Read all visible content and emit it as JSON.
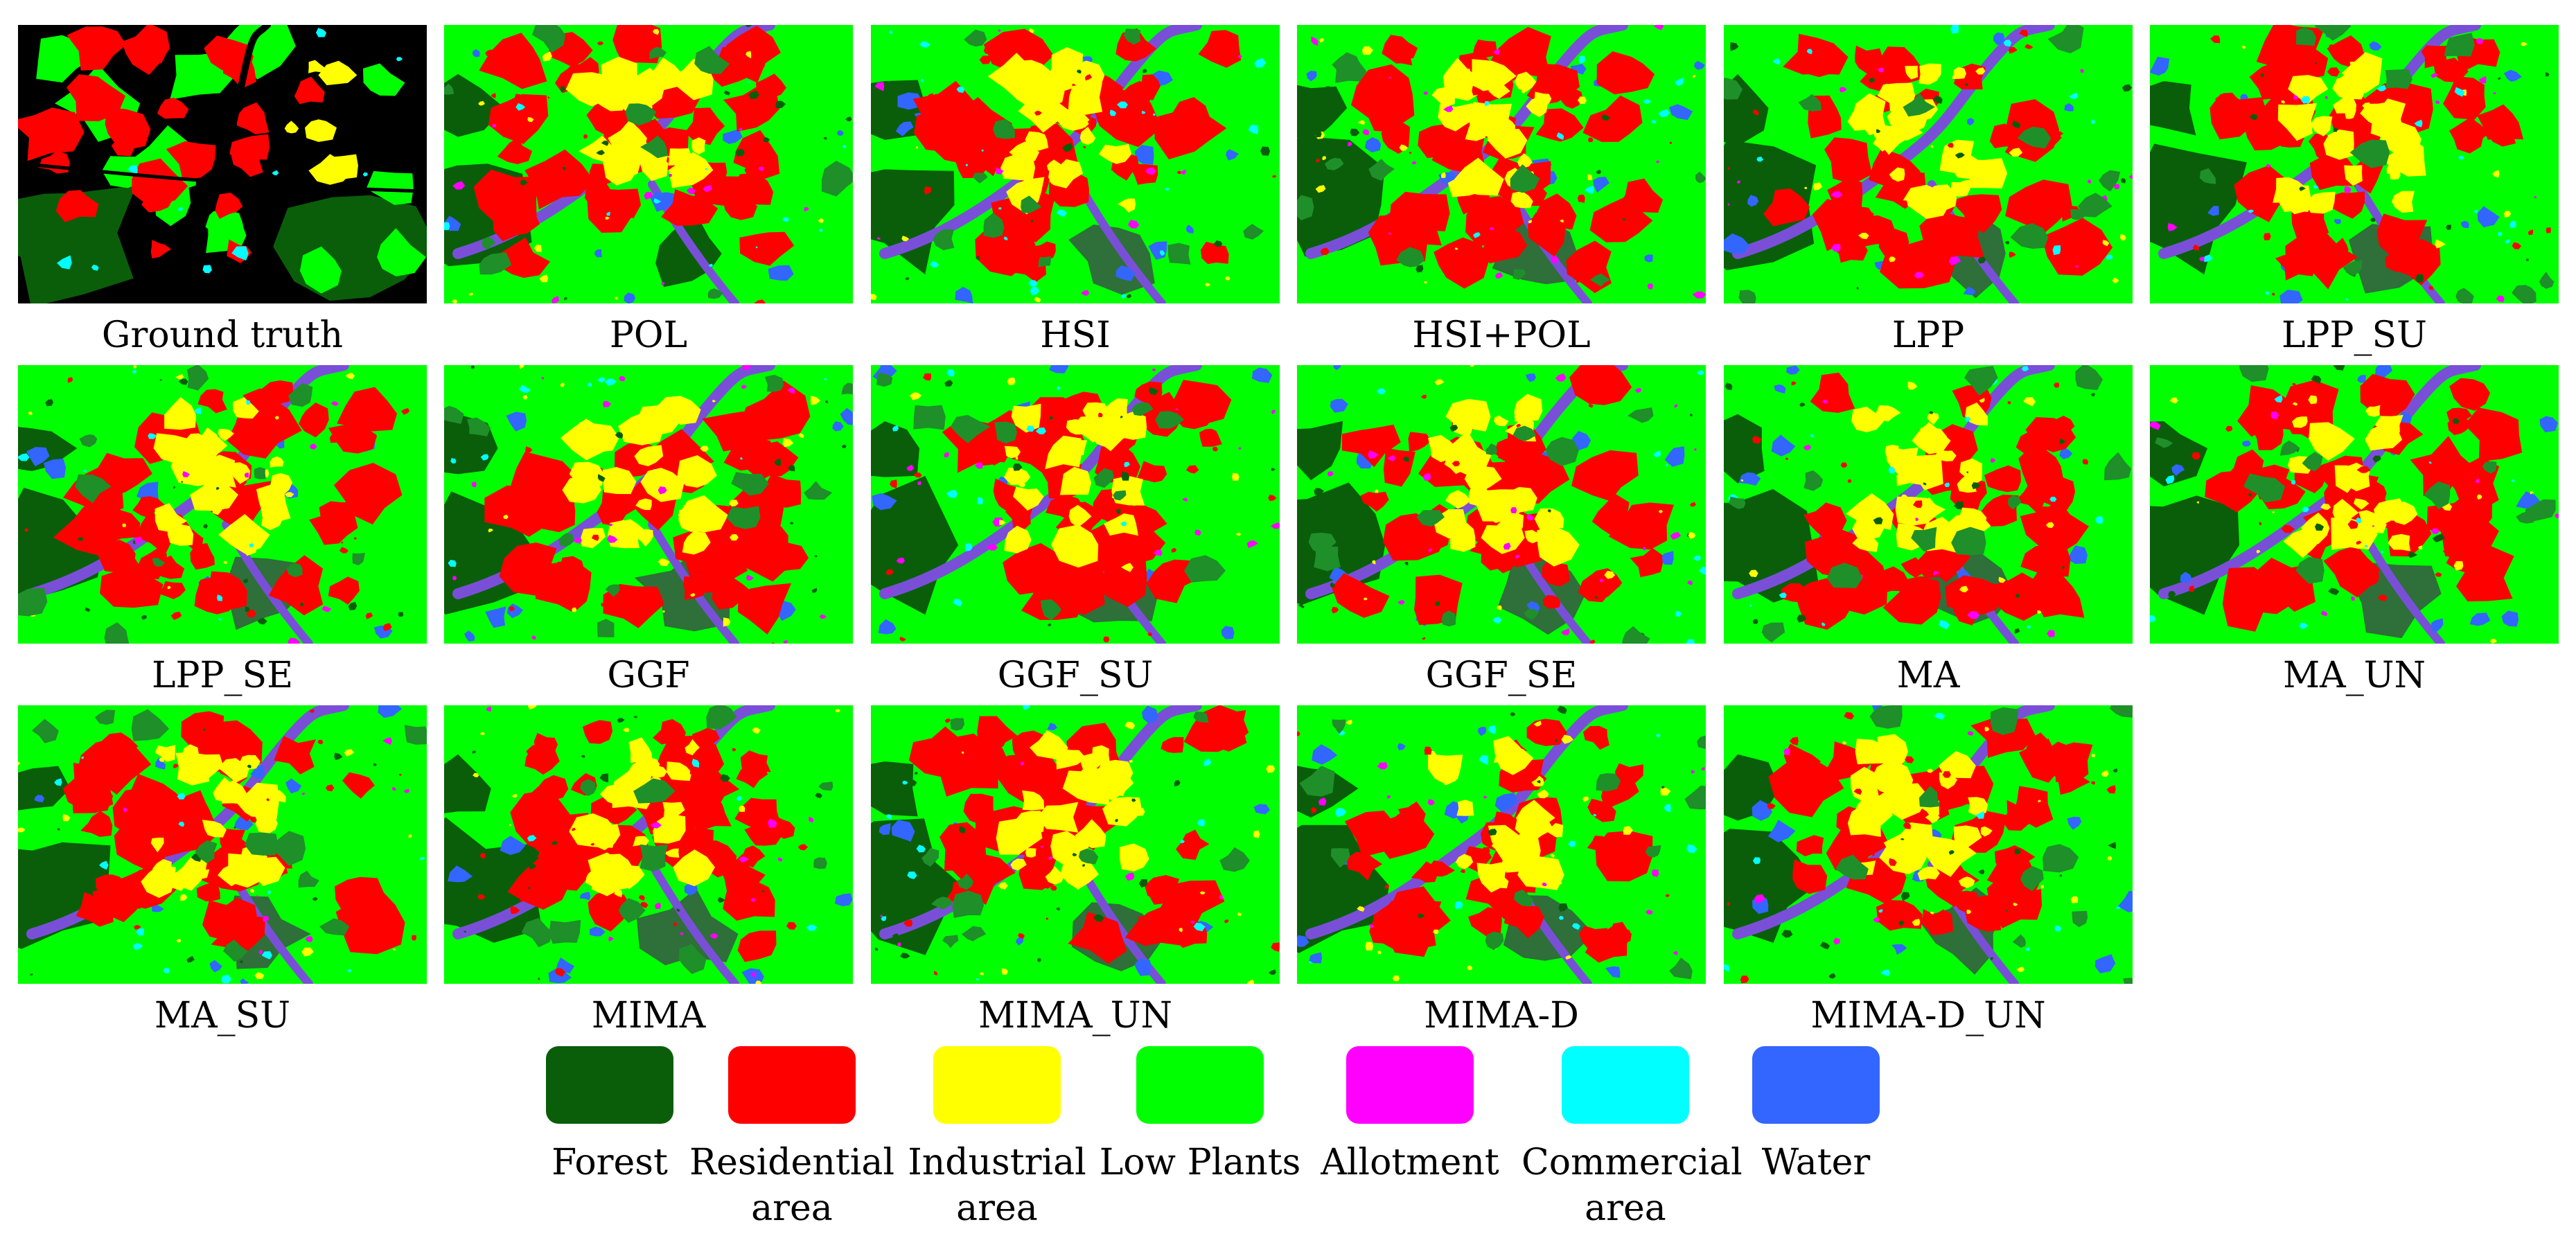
{
  "panels": [
    {
      "label": "Ground truth",
      "kind": "truth"
    },
    {
      "label": "POL",
      "kind": "pol"
    },
    {
      "label": "HSI",
      "kind": "map"
    },
    {
      "label": "HSI+POL",
      "kind": "map"
    },
    {
      "label": "LPP",
      "kind": "map"
    },
    {
      "label": "LPP_SU",
      "kind": "map"
    },
    {
      "label": "LPP_SE",
      "kind": "map"
    },
    {
      "label": "GGF",
      "kind": "map"
    },
    {
      "label": "GGF_SU",
      "kind": "map"
    },
    {
      "label": "GGF_SE",
      "kind": "map"
    },
    {
      "label": "MA",
      "kind": "map"
    },
    {
      "label": "MA_UN",
      "kind": "map"
    },
    {
      "label": "MA_SU",
      "kind": "map"
    },
    {
      "label": "MIMA",
      "kind": "map"
    },
    {
      "label": "MIMA_UN",
      "kind": "map"
    },
    {
      "label": "MIMA-D",
      "kind": "map"
    },
    {
      "label": "MIMA-D_UN",
      "kind": "map"
    }
  ],
  "legend": [
    {
      "label": "Forest",
      "color": "#0a5e0a"
    },
    {
      "label": "Residential\narea",
      "color": "#ff0000"
    },
    {
      "label": "Industrial\narea",
      "color": "#ffff00"
    },
    {
      "label": "Low Plants",
      "color": "#00ff00"
    },
    {
      "label": "Allotment",
      "color": "#ff00ff"
    },
    {
      "label": "Commercial\narea",
      "color": "#00ffff"
    },
    {
      "label": "Water",
      "color": "#3366ff"
    }
  ]
}
